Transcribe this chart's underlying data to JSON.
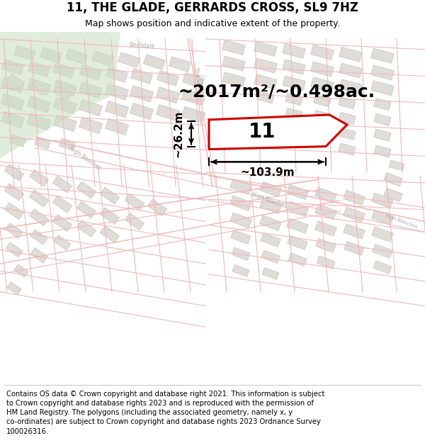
{
  "title": "11, THE GLADE, GERRARDS CROSS, SL9 7HZ",
  "subtitle": "Map shows position and indicative extent of the property.",
  "footer_line1": "Contains OS data © Crown copyright and database right 2021. This information is subject",
  "footer_line2": "to Crown copyright and database rights 2023 and is reproduced with the permission of",
  "footer_line3": "HM Land Registry. The polygons (including the associated geometry, namely x, y",
  "footer_line4": "co-ordinates) are subject to Crown copyright and database rights 2023 Ordnance Survey",
  "footer_line5": "100026316.",
  "area_label": "~2017m²/~0.498ac.",
  "width_label": "~103.9m",
  "height_label": "~26.2m",
  "number_label": "11",
  "map_bg": "#ffffff",
  "road_color": "#f0b8b8",
  "block_color": "#e0dcd8",
  "block_outline": "#c8c4be",
  "highlight_color": "#cc0000",
  "green_patch_color": "#c8dfc0",
  "road_label_color": "#aaaaaa",
  "title_fontsize": 12,
  "subtitle_fontsize": 9,
  "footer_fontsize": 7.2,
  "area_fontsize": 18,
  "meas_fontsize": 11,
  "prop_label_fontsize": 20
}
